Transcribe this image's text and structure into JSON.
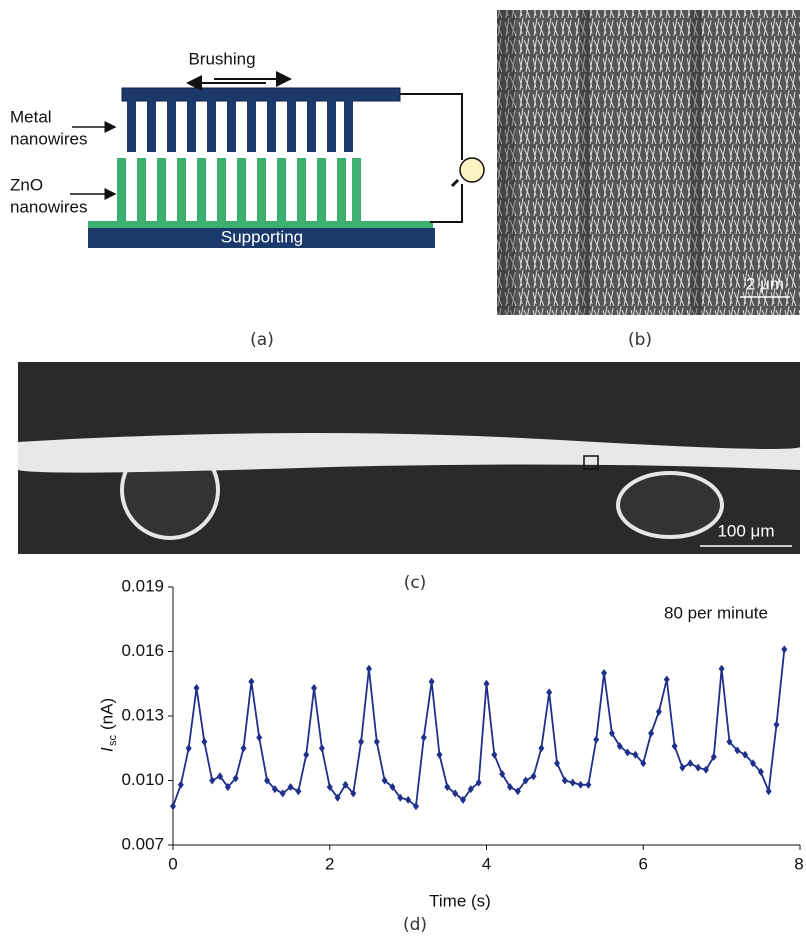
{
  "figure": {
    "a": {
      "brushing": "Brushing",
      "metal_label": [
        "Metal",
        "nanowires"
      ],
      "zno_label": [
        "ZnO",
        "nanowires"
      ],
      "supporting": "Supporting",
      "caption": "(a)"
    },
    "b": {
      "scale": "2 μm",
      "caption": "(b)"
    },
    "c": {
      "scale": "100 μm",
      "caption": "(c)"
    },
    "d": {
      "caption": "(d)"
    }
  },
  "chart_data": {
    "type": "line",
    "ylabel": {
      "symbol": "I",
      "subscript": "sc",
      "unit": "(nA)"
    },
    "xlabel": "Time (s)",
    "annotation": "80 per minute",
    "xlim": [
      0,
      8
    ],
    "xticks": [
      0,
      2,
      4,
      6,
      8
    ],
    "ylim": [
      0.007,
      0.019
    ],
    "yticks": [
      0.007,
      {
        "value": 0.01,
        "label": "0.010"
      },
      0.013,
      0.016,
      0.019
    ],
    "x": [
      0,
      0.1,
      0.2,
      0.3,
      0.4,
      0.5,
      0.6,
      0.7,
      0.8,
      0.9,
      1,
      1.1,
      1.2,
      1.3,
      1.4,
      1.5,
      1.6,
      1.7,
      1.8,
      1.9,
      2,
      2.1,
      2.2,
      2.3,
      2.4,
      2.5,
      2.6,
      2.7,
      2.8,
      2.9,
      3,
      3.1,
      3.2,
      3.3,
      3.4,
      3.5,
      3.6,
      3.7,
      3.8,
      3.9,
      4,
      4.1,
      4.2,
      4.3,
      4.4,
      4.5,
      4.6,
      4.7,
      4.8,
      4.9,
      5,
      5.1,
      5.2,
      5.3,
      5.4,
      5.5,
      5.6,
      5.7,
      5.8,
      5.9,
      6,
      6.1,
      6.2,
      6.3,
      6.4,
      6.5,
      6.6,
      6.7,
      6.8,
      6.9,
      7,
      7.1,
      7.2,
      7.3,
      7.4,
      7.5,
      7.6,
      7.7,
      7.8
    ],
    "series": [
      {
        "color": "#1f2f8a",
        "values": [
          0.0088,
          0.0098,
          0.0115,
          0.0143,
          0.0118,
          0.01,
          0.0102,
          0.0097,
          0.0101,
          0.0115,
          0.0146,
          0.012,
          0.01,
          0.0096,
          0.0094,
          0.0097,
          0.0095,
          0.0112,
          0.0143,
          0.0115,
          0.0097,
          0.0092,
          0.0098,
          0.0094,
          0.0118,
          0.0152,
          0.0118,
          0.01,
          0.0097,
          0.0092,
          0.0091,
          0.0088,
          0.012,
          0.0146,
          0.0112,
          0.0097,
          0.0094,
          0.0091,
          0.0096,
          0.0099,
          0.0145,
          0.0112,
          0.0103,
          0.0097,
          0.0095,
          0.01,
          0.0102,
          0.0115,
          0.0141,
          0.0108,
          0.01,
          0.0099,
          0.0098,
          0.0098,
          0.0119,
          0.015,
          0.0122,
          0.0116,
          0.0113,
          0.0112,
          0.0108,
          0.0122,
          0.0132,
          0.0147,
          0.0116,
          0.0106,
          0.0108,
          0.0106,
          0.0105,
          0.0111,
          0.0152,
          0.0118,
          0.0114,
          0.0112,
          0.0108,
          0.0104,
          0.0095,
          0.0126,
          0.0161
        ]
      }
    ]
  }
}
